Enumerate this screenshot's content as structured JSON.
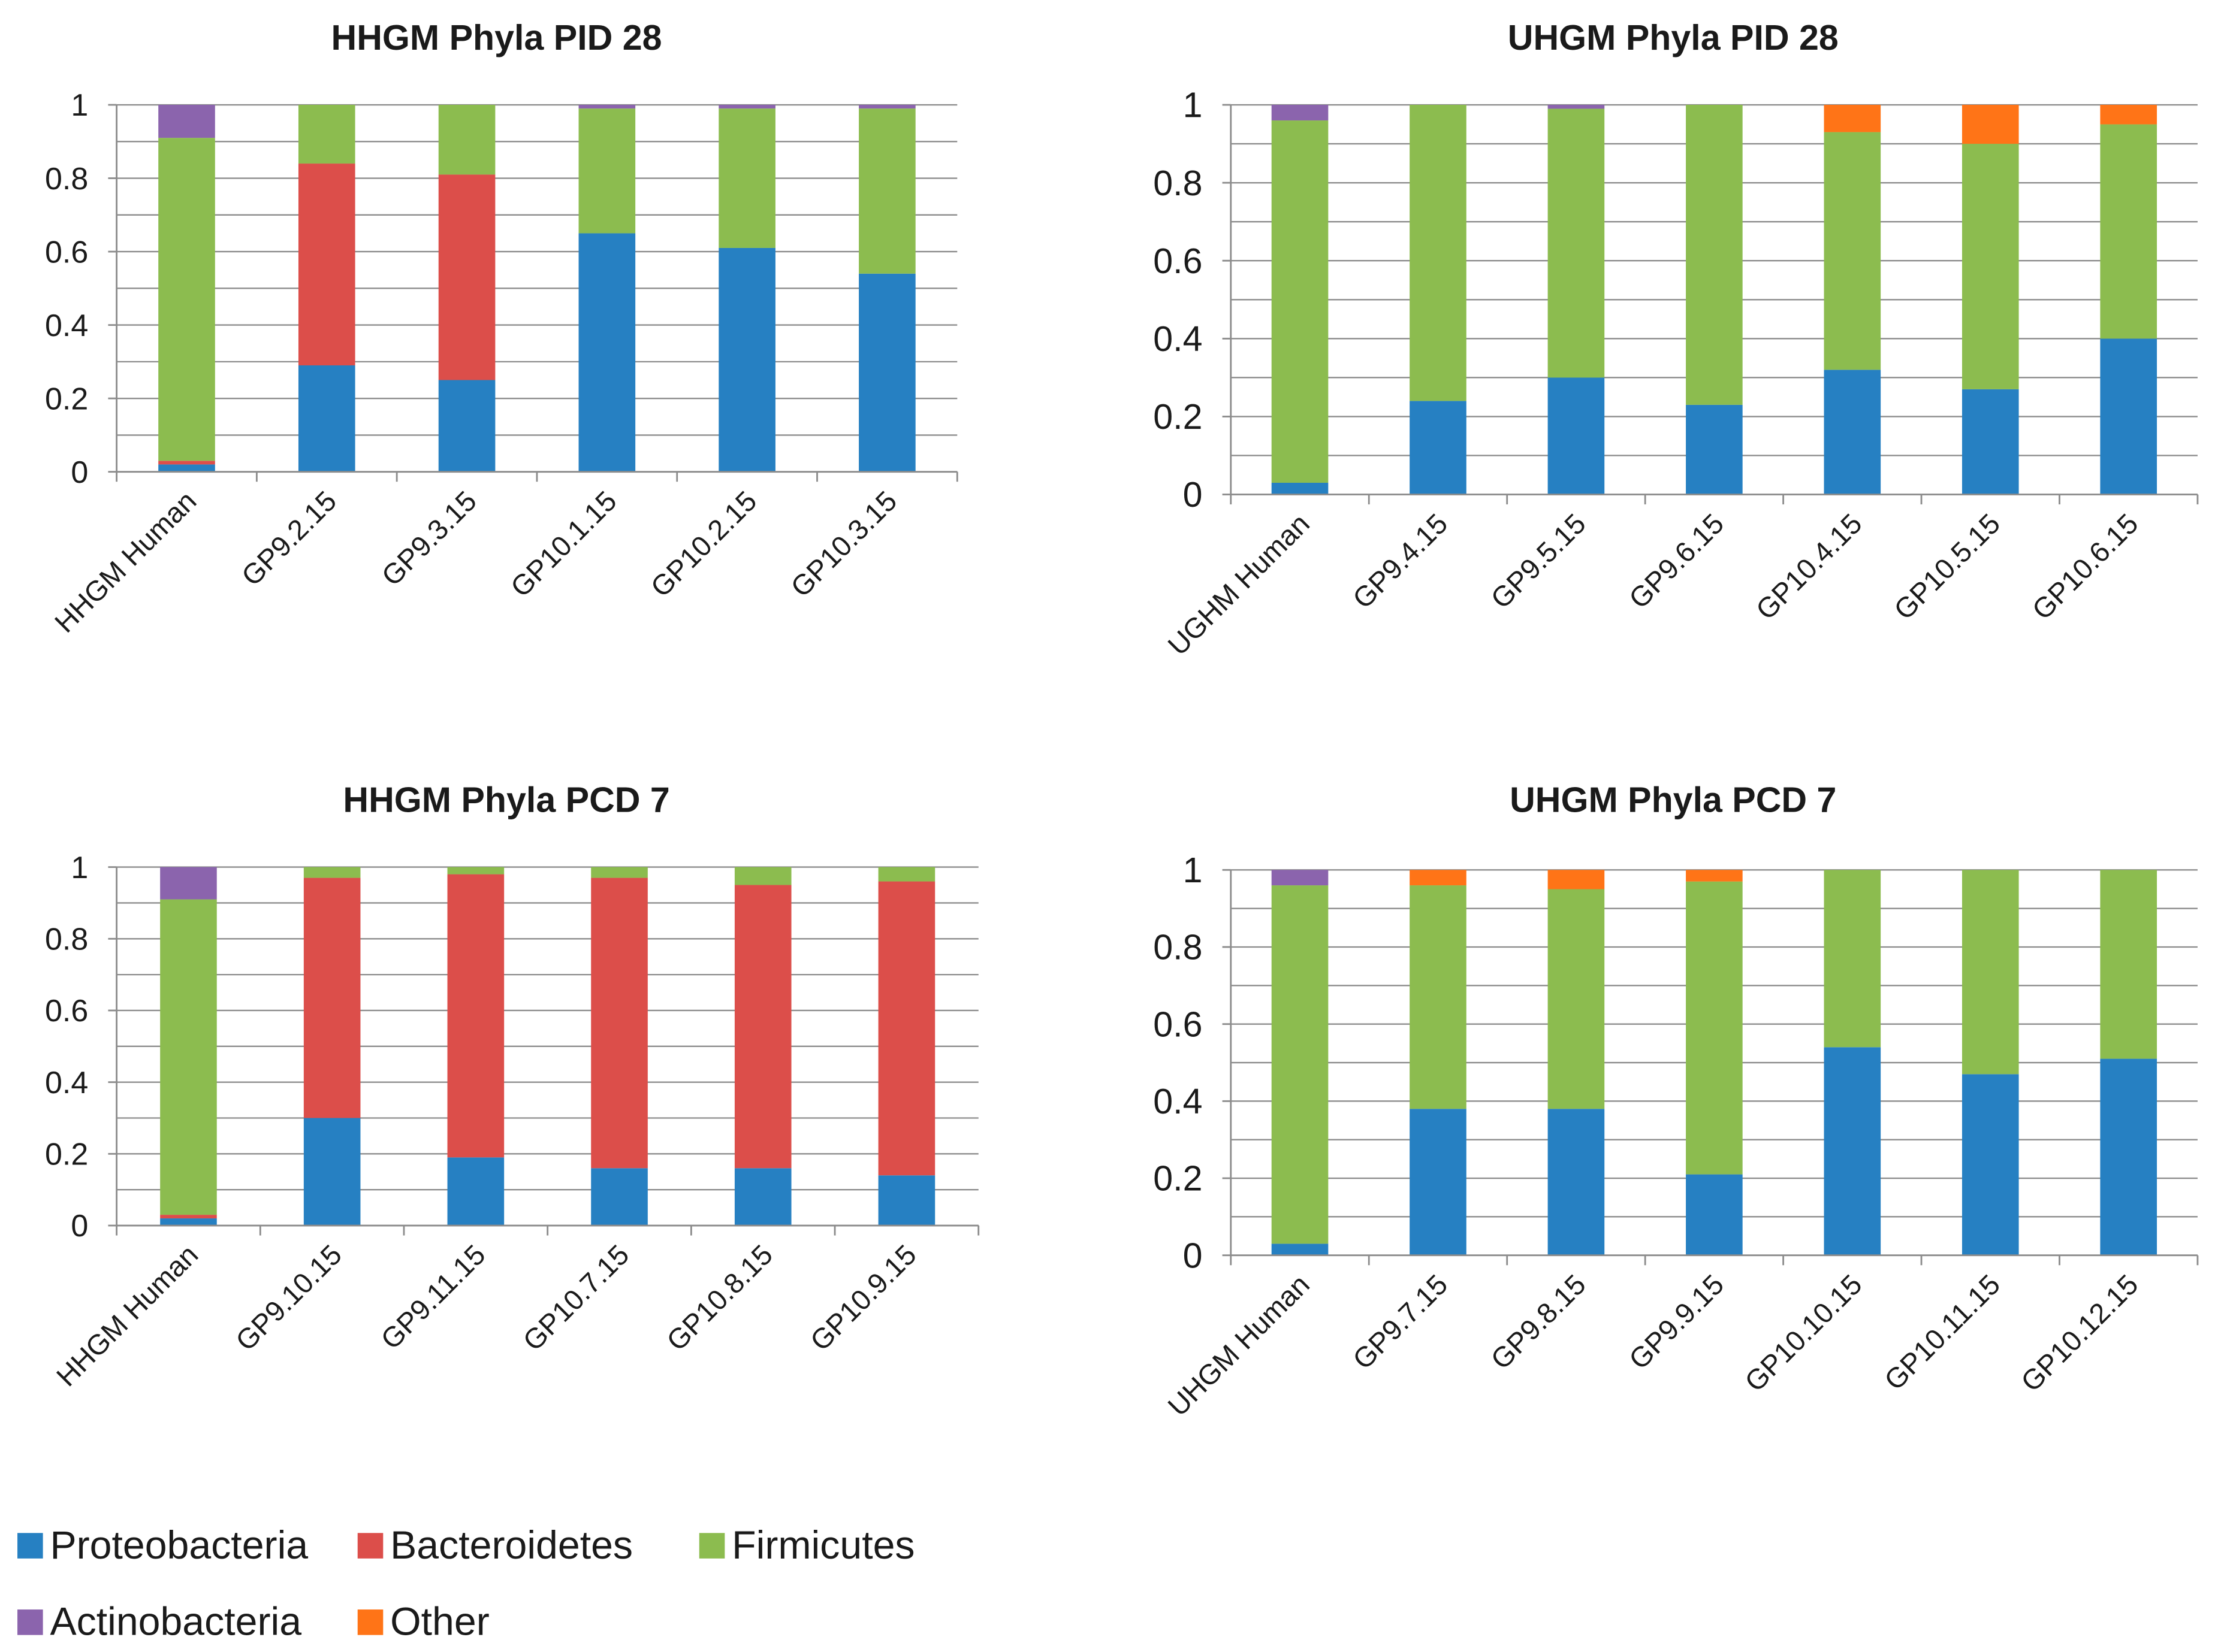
{
  "series_colors": {
    "Proteobacteria": "#2680C2",
    "Bacteroidetes": "#DC4E4A",
    "Firmicutes": "#8CBC4F",
    "Actinobacteria": "#8B64AD",
    "Other": "#FF7417"
  },
  "legend": [
    {
      "name": "Proteobacteria",
      "color": "#2680C2"
    },
    {
      "name": "Bacteroidetes",
      "color": "#DC4E4A"
    },
    {
      "name": "Firmicutes",
      "color": "#8CBC4F"
    },
    {
      "name": "Actinobacteria",
      "color": "#8B64AD"
    },
    {
      "name": "Other",
      "color": "#FF7417"
    }
  ],
  "chart_data": [
    {
      "type": "bar",
      "stacked": true,
      "title": "HHGM Phyla PID 28",
      "ylim": [
        0,
        1
      ],
      "yticks": [
        "0",
        "0.2",
        "0.4",
        "0.6",
        "0.8",
        "1"
      ],
      "categories": [
        "HHGM Human",
        "GP9.2.15",
        "GP9.3.15",
        "GP10.1.15",
        "GP10.2.15",
        "GP10.3.15"
      ],
      "series": [
        {
          "name": "Proteobacteria",
          "values": [
            0.02,
            0.29,
            0.25,
            0.65,
            0.61,
            0.54
          ]
        },
        {
          "name": "Bacteroidetes",
          "values": [
            0.01,
            0.55,
            0.56,
            0.0,
            0.0,
            0.0
          ]
        },
        {
          "name": "Firmicutes",
          "values": [
            0.88,
            0.16,
            0.19,
            0.34,
            0.38,
            0.45
          ]
        },
        {
          "name": "Actinobacteria",
          "values": [
            0.09,
            0.0,
            0.0,
            0.01,
            0.01,
            0.01
          ]
        },
        {
          "name": "Other",
          "values": [
            0.0,
            0.0,
            0.0,
            0.0,
            0.0,
            0.0
          ]
        }
      ]
    },
    {
      "type": "bar",
      "stacked": true,
      "title": "UHGM Phyla PID 28",
      "ylim": [
        0,
        1
      ],
      "yticks": [
        "0",
        "0.2",
        "0.4",
        "0.6",
        "0.8",
        "1"
      ],
      "categories": [
        "UGHM Human",
        "GP9.4.15",
        "GP9.5.15",
        "GP9.6.15",
        "GP10.4.15",
        "GP10.5.15",
        "GP10.6.15"
      ],
      "series": [
        {
          "name": "Proteobacteria",
          "values": [
            0.03,
            0.24,
            0.3,
            0.23,
            0.32,
            0.27,
            0.4
          ]
        },
        {
          "name": "Bacteroidetes",
          "values": [
            0.0,
            0.0,
            0.0,
            0.0,
            0.0,
            0.0,
            0.0
          ]
        },
        {
          "name": "Firmicutes",
          "values": [
            0.93,
            0.76,
            0.69,
            0.77,
            0.61,
            0.63,
            0.55
          ]
        },
        {
          "name": "Actinobacteria",
          "values": [
            0.04,
            0.0,
            0.01,
            0.0,
            0.0,
            0.0,
            0.0
          ]
        },
        {
          "name": "Other",
          "values": [
            0.0,
            0.0,
            0.0,
            0.0,
            0.07,
            0.1,
            0.05
          ]
        }
      ]
    },
    {
      "type": "bar",
      "stacked": true,
      "title": "HHGM Phyla PCD 7",
      "ylim": [
        0,
        1
      ],
      "yticks": [
        "0",
        "0.2",
        "0.4",
        "0.6",
        "0.8",
        "1"
      ],
      "categories": [
        "HHGM Human",
        "GP9.10.15",
        "GP9.11.15",
        "GP10.7.15",
        "GP10.8.15",
        "GP10.9.15"
      ],
      "series": [
        {
          "name": "Proteobacteria",
          "values": [
            0.02,
            0.3,
            0.19,
            0.16,
            0.16,
            0.14
          ]
        },
        {
          "name": "Bacteroidetes",
          "values": [
            0.01,
            0.67,
            0.79,
            0.81,
            0.79,
            0.82
          ]
        },
        {
          "name": "Firmicutes",
          "values": [
            0.88,
            0.03,
            0.02,
            0.03,
            0.05,
            0.04
          ]
        },
        {
          "name": "Actinobacteria",
          "values": [
            0.09,
            0.0,
            0.0,
            0.0,
            0.0,
            0.0
          ]
        },
        {
          "name": "Other",
          "values": [
            0.0,
            0.0,
            0.0,
            0.0,
            0.0,
            0.0
          ]
        }
      ]
    },
    {
      "type": "bar",
      "stacked": true,
      "title": "UHGM Phyla PCD 7",
      "ylim": [
        0,
        1
      ],
      "yticks": [
        "0",
        "0.2",
        "0.4",
        "0.6",
        "0.8",
        "1"
      ],
      "categories": [
        "UHGM Human",
        "GP9.7.15",
        "GP9.8.15",
        "GP9.9.15",
        "GP10.10.15",
        "GP10.11.15",
        "GP10.12.15"
      ],
      "series": [
        {
          "name": "Proteobacteria",
          "values": [
            0.03,
            0.38,
            0.38,
            0.21,
            0.54,
            0.47,
            0.51
          ]
        },
        {
          "name": "Bacteroidetes",
          "values": [
            0.0,
            0.0,
            0.0,
            0.0,
            0.0,
            0.0,
            0.0
          ]
        },
        {
          "name": "Firmicutes",
          "values": [
            0.93,
            0.58,
            0.57,
            0.76,
            0.46,
            0.53,
            0.49
          ]
        },
        {
          "name": "Actinobacteria",
          "values": [
            0.04,
            0.0,
            0.0,
            0.0,
            0.0,
            0.0,
            0.0
          ]
        },
        {
          "name": "Other",
          "values": [
            0.0,
            0.04,
            0.05,
            0.03,
            0.0,
            0.0,
            0.0
          ]
        }
      ]
    }
  ]
}
